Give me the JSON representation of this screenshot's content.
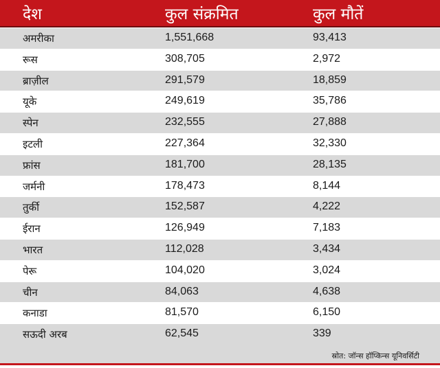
{
  "table": {
    "headers": [
      "देश",
      "कुल संक्रमित",
      "कुल मौतें"
    ],
    "rows": [
      {
        "country": "अमरीका",
        "infected": "1,551,668",
        "deaths": "93,413"
      },
      {
        "country": "रूस",
        "infected": "308,705",
        "deaths": "2,972"
      },
      {
        "country": "ब्राज़ील",
        "infected": "291,579",
        "deaths": "18,859"
      },
      {
        "country": "यूके",
        "infected": "249,619",
        "deaths": "35,786"
      },
      {
        "country": "स्पेन",
        "infected": "232,555",
        "deaths": "27,888"
      },
      {
        "country": "इटली",
        "infected": "227,364",
        "deaths": "32,330"
      },
      {
        "country": "फ्रांस",
        "infected": "181,700",
        "deaths": "28,135"
      },
      {
        "country": "जर्मनी",
        "infected": "178,473",
        "deaths": "8,144"
      },
      {
        "country": "तुर्की",
        "infected": "152,587",
        "deaths": "4,222"
      },
      {
        "country": "ईरान",
        "infected": "126,949",
        "deaths": "7,183"
      },
      {
        "country": "भारत",
        "infected": "112,028",
        "deaths": "3,434"
      },
      {
        "country": "पेरू",
        "infected": "104,020",
        "deaths": "3,024"
      },
      {
        "country": "चीन",
        "infected": "84,063",
        "deaths": "4,638"
      },
      {
        "country": "कनाडा",
        "infected": "81,570",
        "deaths": "6,150"
      },
      {
        "country": "सऊदी अरब",
        "infected": "62,545",
        "deaths": "339"
      }
    ],
    "source": "स्रोत: जॉन्स हॉप्किन्स यूनिवर्सिटी"
  },
  "colors": {
    "header_bg": "#c4161c",
    "row_shade": "#d9d9d9"
  }
}
